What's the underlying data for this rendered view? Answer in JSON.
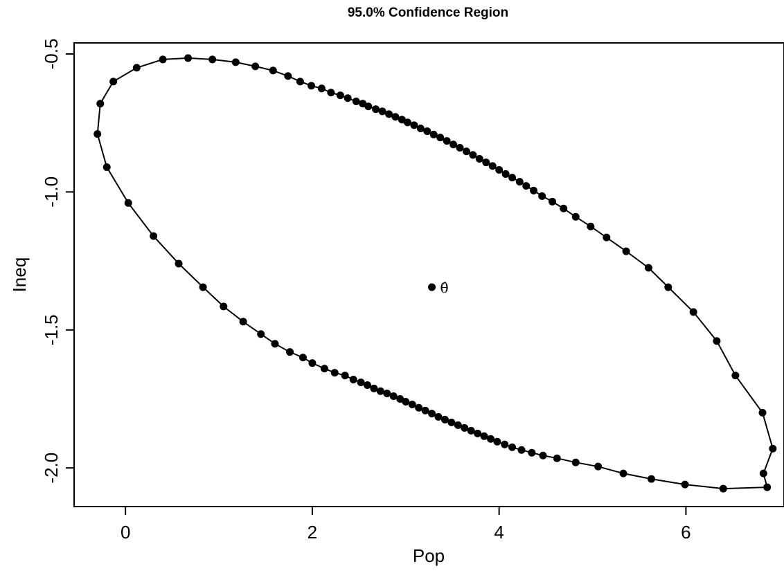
{
  "chart_data": {
    "type": "scatter",
    "title": "95.0% Confidence Region",
    "xlabel": "Pop",
    "ylabel": "Ineq",
    "xlim": [
      -0.55,
      7.05
    ],
    "ylim": [
      -2.14,
      -0.46
    ],
    "x_ticks": [
      "0",
      "2",
      "4",
      "6"
    ],
    "x_tick_values": [
      0,
      2,
      4,
      6
    ],
    "y_ticks": [
      "-0.5",
      "-1.0",
      "-1.5",
      "-2.0"
    ],
    "y_tick_values": [
      -0.5,
      -1.0,
      -1.5,
      -2.0
    ],
    "grid": false,
    "series": [
      {
        "values": [
          [
            -0.3,
            -0.79
          ],
          [
            -0.27,
            -0.68
          ],
          [
            -0.2,
            -0.91
          ],
          [
            -0.13,
            -0.6
          ],
          [
            0.03,
            -1.04
          ],
          [
            0.12,
            -0.55
          ],
          [
            0.3,
            -1.16
          ],
          [
            0.4,
            -0.52
          ],
          [
            0.57,
            -1.26
          ],
          [
            0.67,
            -0.515
          ],
          [
            0.83,
            -1.345
          ],
          [
            0.93,
            -0.52
          ],
          [
            1.05,
            -1.415
          ],
          [
            1.18,
            -0.53
          ],
          [
            1.26,
            -1.47
          ],
          [
            1.39,
            -0.545
          ],
          [
            1.45,
            -1.515
          ],
          [
            1.58,
            -0.56
          ],
          [
            1.6,
            -1.55
          ],
          [
            1.74,
            -0.58
          ],
          [
            1.76,
            -1.58
          ],
          [
            1.87,
            -0.6
          ],
          [
            1.9,
            -1.6
          ],
          [
            1.99,
            -0.615
          ],
          [
            2.0,
            -1.62
          ],
          [
            2.1,
            -0.625
          ],
          [
            2.13,
            -1.64
          ],
          [
            2.2,
            -0.64
          ],
          [
            2.24,
            -1.655
          ],
          [
            2.3,
            -0.65
          ],
          [
            2.35,
            -1.665
          ],
          [
            2.38,
            -0.66
          ],
          [
            2.44,
            -1.68
          ],
          [
            2.47,
            -0.672
          ],
          [
            2.52,
            -1.69
          ],
          [
            2.54,
            -0.68
          ],
          [
            2.59,
            -1.7
          ],
          [
            2.6,
            -0.69
          ],
          [
            2.66,
            -1.712
          ],
          [
            2.68,
            -0.7
          ],
          [
            2.73,
            -1.722
          ],
          [
            2.75,
            -0.708
          ],
          [
            2.8,
            -1.73
          ],
          [
            2.82,
            -0.718
          ],
          [
            2.87,
            -1.74
          ],
          [
            2.89,
            -0.728
          ],
          [
            2.94,
            -1.75
          ],
          [
            2.96,
            -0.738
          ],
          [
            3.0,
            -1.76
          ],
          [
            3.02,
            -0.748
          ],
          [
            3.07,
            -1.77
          ],
          [
            3.09,
            -0.758
          ],
          [
            3.14,
            -1.782
          ],
          [
            3.16,
            -0.77
          ],
          [
            3.21,
            -1.792
          ],
          [
            3.23,
            -0.78
          ],
          [
            3.28,
            -1.803
          ],
          [
            3.3,
            -0.792
          ],
          [
            3.35,
            -1.815
          ],
          [
            3.37,
            -0.803
          ],
          [
            3.42,
            -1.825
          ],
          [
            3.44,
            -0.815
          ],
          [
            3.49,
            -1.835
          ],
          [
            3.51,
            -0.828
          ],
          [
            3.56,
            -1.845
          ],
          [
            3.58,
            -0.84
          ],
          [
            3.63,
            -1.855
          ],
          [
            3.65,
            -0.853
          ],
          [
            3.7,
            -1.865
          ],
          [
            3.72,
            -0.866
          ],
          [
            3.77,
            -1.875
          ],
          [
            3.79,
            -0.88
          ],
          [
            3.84,
            -1.885
          ],
          [
            3.86,
            -0.893
          ],
          [
            3.91,
            -1.895
          ],
          [
            3.93,
            -0.906
          ],
          [
            3.98,
            -1.905
          ],
          [
            4.0,
            -0.92
          ],
          [
            4.06,
            -1.915
          ],
          [
            4.07,
            -0.935
          ],
          [
            4.14,
            -1.925
          ],
          [
            4.14,
            -0.948
          ],
          [
            4.22,
            -0.963
          ],
          [
            4.24,
            -1.935
          ],
          [
            4.29,
            -0.978
          ],
          [
            4.35,
            -1.945
          ],
          [
            4.37,
            -0.995
          ],
          [
            4.46,
            -1.015
          ],
          [
            4.47,
            -1.955
          ],
          [
            4.57,
            -1.035
          ],
          [
            4.62,
            -1.965
          ],
          [
            4.69,
            -1.06
          ],
          [
            4.82,
            -1.09
          ],
          [
            4.82,
            -1.98
          ],
          [
            4.98,
            -1.125
          ],
          [
            5.06,
            -1.995
          ],
          [
            5.15,
            -1.165
          ],
          [
            5.33,
            -2.02
          ],
          [
            5.36,
            -1.215
          ],
          [
            5.6,
            -1.275
          ],
          [
            5.63,
            -2.04
          ],
          [
            5.81,
            -1.345
          ],
          [
            5.99,
            -2.06
          ],
          [
            6.08,
            -1.435
          ],
          [
            6.33,
            -1.54
          ],
          [
            6.4,
            -2.075
          ],
          [
            6.53,
            -1.665
          ],
          [
            6.87,
            -2.07
          ],
          [
            6.82,
            -1.8
          ],
          [
            6.83,
            -2.02
          ],
          [
            6.93,
            -1.93
          ]
        ]
      }
    ],
    "center": {
      "x": 3.28,
      "y": -1.345,
      "label": "θ̂"
    }
  }
}
